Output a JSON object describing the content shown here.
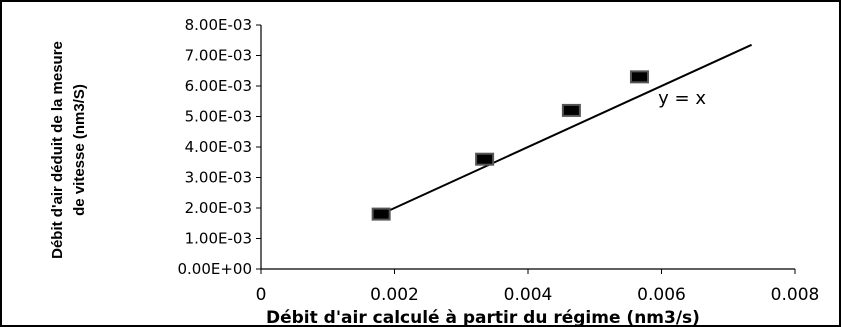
{
  "chart_data": {
    "type": "scatter",
    "title": "",
    "xlabel": "Débit d'air calculé  à partir du régime (nm3/s)",
    "ylabel_lines": [
      "Débit d'air déduit de la mesure",
      "de vitesse (nm3/S)"
    ],
    "xlim": [
      0,
      0.008
    ],
    "ylim": [
      0,
      0.008
    ],
    "x_ticks": [
      0,
      0.002,
      0.004,
      0.006,
      0.008
    ],
    "x_tick_labels": [
      "0",
      "0.002",
      "0.004",
      "0.006",
      "0.008"
    ],
    "y_ticks": [
      0,
      0.001,
      0.002,
      0.003,
      0.004,
      0.005,
      0.006,
      0.007,
      0.008
    ],
    "y_tick_labels": [
      "0.00E+00",
      "1.00E-03",
      "2.00E-03",
      "3.00E-03",
      "4.00E-03",
      "5.00E-03",
      "6.00E-03",
      "7.00E-03",
      "8.00E-03"
    ],
    "grid": false,
    "legend": "none",
    "series": [
      {
        "marker": "square",
        "color": "#000000",
        "x": [
          0.0018,
          0.00335,
          0.00465,
          0.00567
        ],
        "y": [
          0.0018,
          0.0036,
          0.0052,
          0.0063
        ]
      }
    ],
    "reference_line": {
      "label": "y = x",
      "from": [
        0.0018,
        0.0018
      ],
      "to": [
        0.00735,
        0.00735
      ],
      "color": "#000000"
    },
    "annotations": [
      {
        "text": "y = x",
        "x": 0.00595,
        "y": 0.0056
      }
    ]
  }
}
